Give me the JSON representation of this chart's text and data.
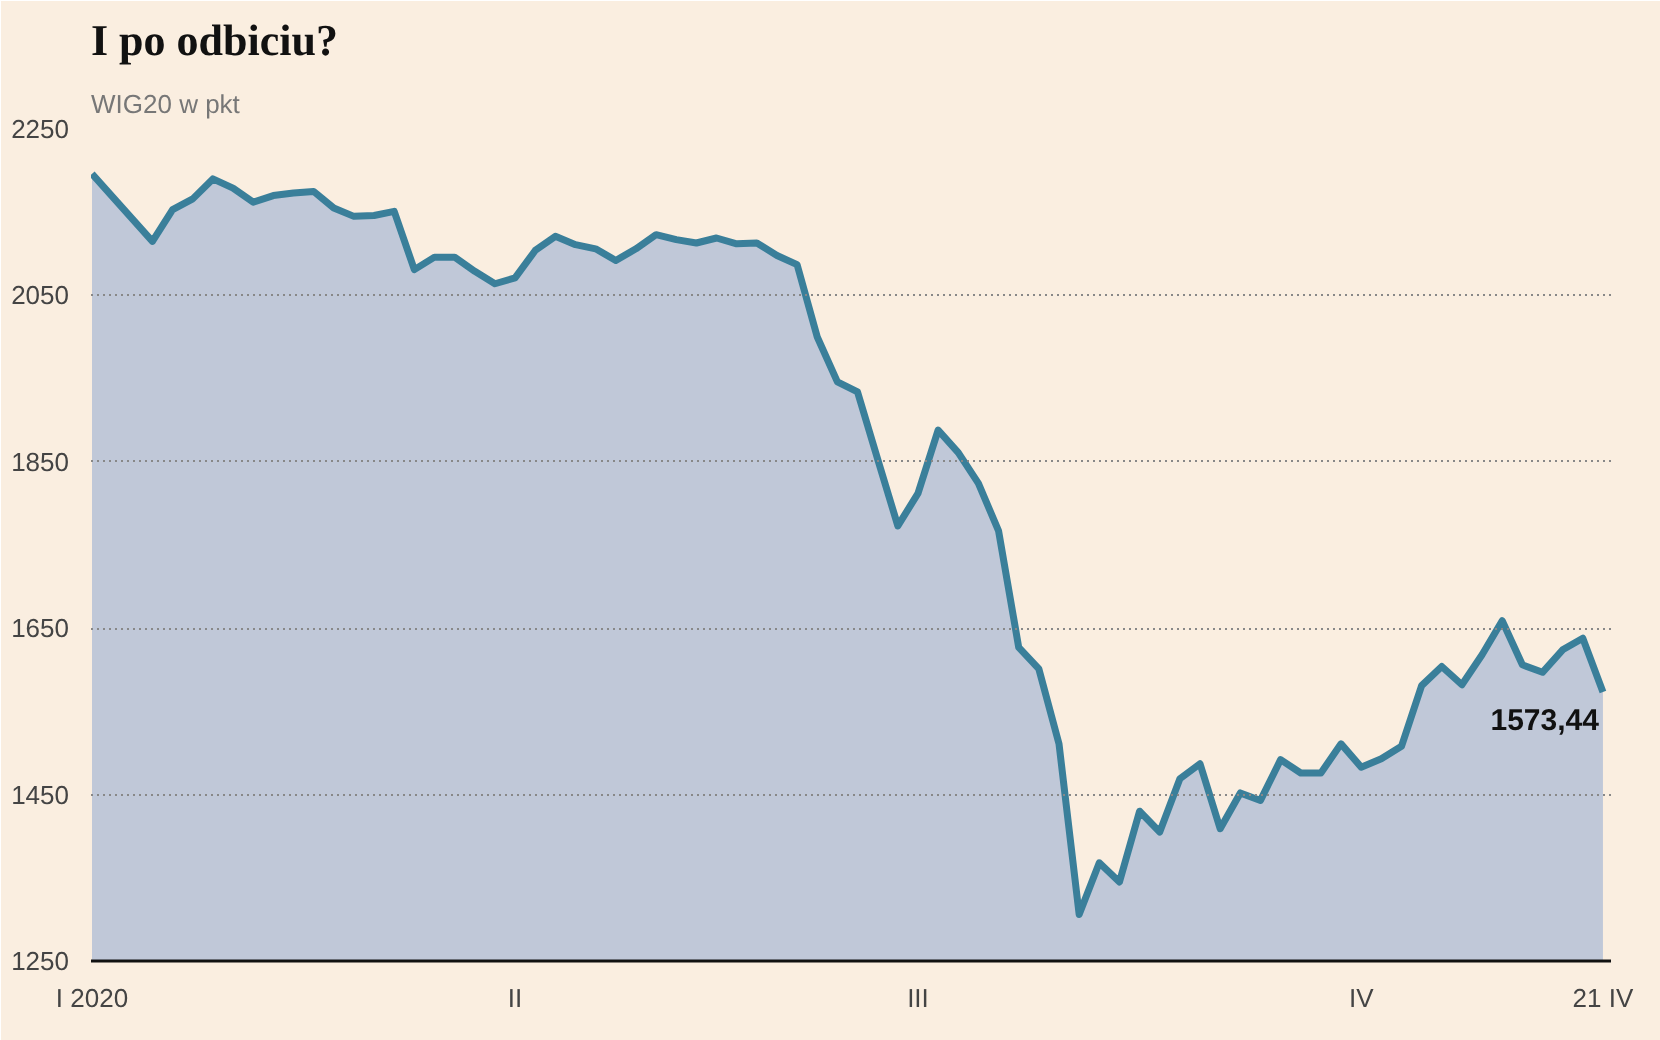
{
  "chart_data": {
    "type": "area",
    "title": "I po odbiciu?",
    "subtitle": "WIG20 w pkt",
    "categories": [
      "I 2020",
      null,
      null,
      null,
      null,
      null,
      null,
      null,
      null,
      null,
      null,
      null,
      null,
      null,
      null,
      null,
      null,
      null,
      null,
      null,
      null,
      "II",
      null,
      null,
      null,
      null,
      null,
      null,
      null,
      null,
      null,
      null,
      null,
      null,
      null,
      null,
      null,
      null,
      null,
      null,
      null,
      "III",
      null,
      null,
      null,
      null,
      null,
      null,
      null,
      null,
      null,
      null,
      null,
      null,
      null,
      null,
      null,
      null,
      null,
      null,
      null,
      null,
      null,
      "IV",
      null,
      null,
      null,
      null,
      null,
      null,
      null,
      null,
      null,
      null,
      null,
      "21 IV"
    ],
    "series": [
      {
        "color": "#3a7f9a",
        "values": [
          2196,
          2169,
          2142,
          2115,
          2153,
          2166,
          2190,
          2179,
          2162,
          2170,
          2173,
          2175,
          2155,
          2145,
          2146,
          2151,
          2081,
          2096,
          2096,
          2079,
          2064,
          2071,
          2104,
          2121,
          2111,
          2106,
          2092,
          2106,
          2123,
          2117,
          2113,
          2119,
          2112,
          2113,
          2098,
          2087,
          2000,
          1946,
          1934,
          1853,
          1773,
          1812,
          1888,
          1861,
          1824,
          1767,
          1627,
          1601,
          1511,
          1306,
          1368,
          1345,
          1430,
          1405,
          1469,
          1487,
          1409,
          1452,
          1443,
          1492,
          1476,
          1476,
          1511,
          1483,
          1493,
          1508,
          1581,
          1604,
          1582,
          1618,
          1659,
          1606,
          1597,
          1624,
          1638,
          1573.44
        ]
      }
    ],
    "ylim": [
      1250,
      2250
    ],
    "yticks": [
      1250,
      1450,
      1650,
      1850,
      2050,
      2250
    ],
    "grid": "y",
    "annotations": [
      {
        "text": "1573,44",
        "x": "21 IV",
        "y": 1573.44
      }
    ]
  }
}
